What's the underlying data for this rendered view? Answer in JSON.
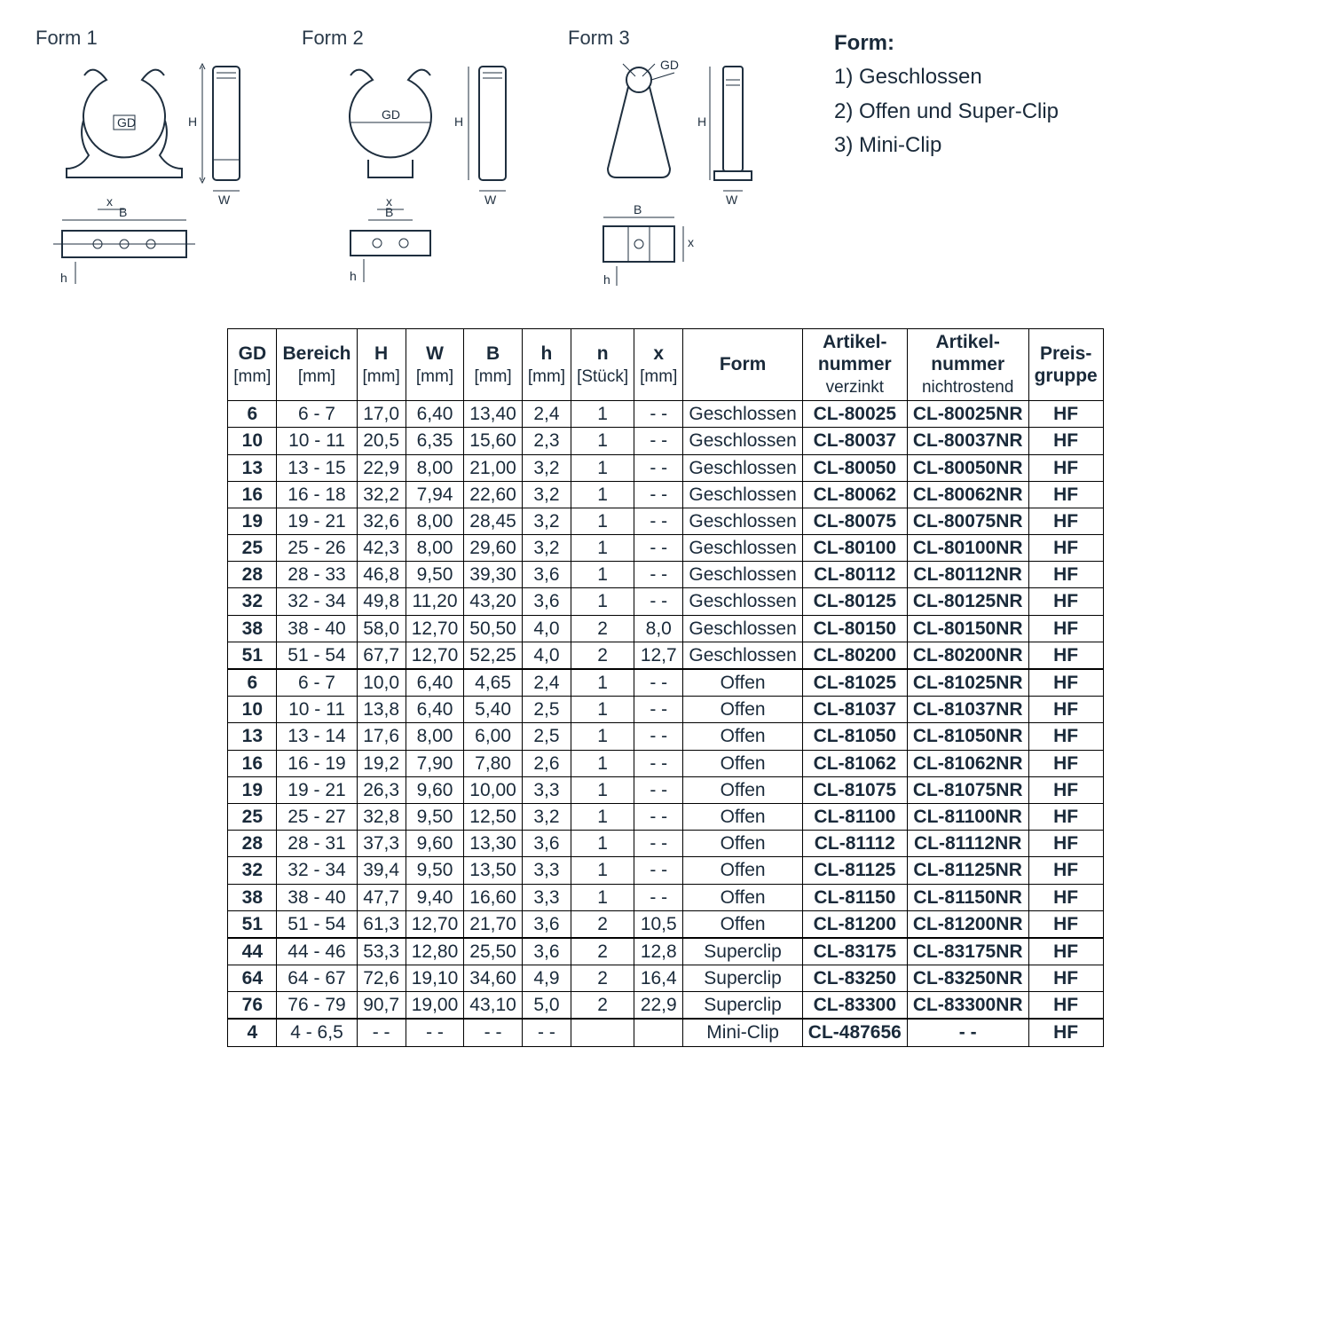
{
  "diagrams": {
    "form1_label": "Form 1",
    "form2_label": "Form 2",
    "form3_label": "Form 3",
    "gd_label": "GD",
    "h_label": "H",
    "w_label": "W",
    "b_label": "B",
    "x_label": "x",
    "h_small_label": "h"
  },
  "legend": {
    "title": "Form:",
    "items": [
      "1) Geschlossen",
      "2) Offen und Super-Clip",
      "3) Mini-Clip"
    ]
  },
  "table": {
    "headers": {
      "gd": "GD",
      "gd_unit": "[mm]",
      "bereich": "Bereich",
      "bereich_unit": "[mm]",
      "H": "H",
      "H_unit": "[mm]",
      "W": "W",
      "W_unit": "[mm]",
      "B": "B",
      "B_unit": "[mm]",
      "h": "h",
      "h_unit": "[mm]",
      "n": "n",
      "n_unit": "[Stück]",
      "x": "x",
      "x_unit": "[mm]",
      "form": "Form",
      "art1a": "Artikel-",
      "art1b": "nummer",
      "art1c": "verzinkt",
      "art2a": "Artikel-",
      "art2b": "nummer",
      "art2c": "nichtrostend",
      "preis_a": "Preis-",
      "preis_b": "gruppe"
    },
    "groups": [
      {
        "rows": [
          {
            "gd": "6",
            "bereich": "6  -  7",
            "H": "17,0",
            "W": "6,40",
            "B": "13,40",
            "h": "2,4",
            "n": "1",
            "x": "- -",
            "form": "Geschlossen",
            "art1": "CL-80025",
            "art2": "CL-80025NR",
            "pg": "HF"
          },
          {
            "gd": "10",
            "bereich": "10 - 11",
            "H": "20,5",
            "W": "6,35",
            "B": "15,60",
            "h": "2,3",
            "n": "1",
            "x": "- -",
            "form": "Geschlossen",
            "art1": "CL-80037",
            "art2": "CL-80037NR",
            "pg": "HF"
          },
          {
            "gd": "13",
            "bereich": "13 - 15",
            "H": "22,9",
            "W": "8,00",
            "B": "21,00",
            "h": "3,2",
            "n": "1",
            "x": "- -",
            "form": "Geschlossen",
            "art1": "CL-80050",
            "art2": "CL-80050NR",
            "pg": "HF"
          },
          {
            "gd": "16",
            "bereich": "16 - 18",
            "H": "32,2",
            "W": "7,94",
            "B": "22,60",
            "h": "3,2",
            "n": "1",
            "x": "- -",
            "form": "Geschlossen",
            "art1": "CL-80062",
            "art2": "CL-80062NR",
            "pg": "HF"
          },
          {
            "gd": "19",
            "bereich": "19 - 21",
            "H": "32,6",
            "W": "8,00",
            "B": "28,45",
            "h": "3,2",
            "n": "1",
            "x": "- -",
            "form": "Geschlossen",
            "art1": "CL-80075",
            "art2": "CL-80075NR",
            "pg": "HF"
          },
          {
            "gd": "25",
            "bereich": "25 - 26",
            "H": "42,3",
            "W": "8,00",
            "B": "29,60",
            "h": "3,2",
            "n": "1",
            "x": "- -",
            "form": "Geschlossen",
            "art1": "CL-80100",
            "art2": "CL-80100NR",
            "pg": "HF"
          },
          {
            "gd": "28",
            "bereich": "28 - 33",
            "H": "46,8",
            "W": "9,50",
            "B": "39,30",
            "h": "3,6",
            "n": "1",
            "x": "- -",
            "form": "Geschlossen",
            "art1": "CL-80112",
            "art2": "CL-80112NR",
            "pg": "HF"
          },
          {
            "gd": "32",
            "bereich": "32 - 34",
            "H": "49,8",
            "W": "11,20",
            "B": "43,20",
            "h": "3,6",
            "n": "1",
            "x": "- -",
            "form": "Geschlossen",
            "art1": "CL-80125",
            "art2": "CL-80125NR",
            "pg": "HF"
          },
          {
            "gd": "38",
            "bereich": "38 - 40",
            "H": "58,0",
            "W": "12,70",
            "B": "50,50",
            "h": "4,0",
            "n": "2",
            "x": "8,0",
            "form": "Geschlossen",
            "art1": "CL-80150",
            "art2": "CL-80150NR",
            "pg": "HF"
          },
          {
            "gd": "51",
            "bereich": "51 - 54",
            "H": "67,7",
            "W": "12,70",
            "B": "52,25",
            "h": "4,0",
            "n": "2",
            "x": "12,7",
            "form": "Geschlossen",
            "art1": "CL-80200",
            "art2": "CL-80200NR",
            "pg": "HF"
          }
        ]
      },
      {
        "rows": [
          {
            "gd": "6",
            "bereich": "6  -  7",
            "H": "10,0",
            "W": "6,40",
            "B": "4,65",
            "h": "2,4",
            "n": "1",
            "x": "- -",
            "form": "Offen",
            "art1": "CL-81025",
            "art2": "CL-81025NR",
            "pg": "HF"
          },
          {
            "gd": "10",
            "bereich": "10 - 11",
            "H": "13,8",
            "W": "6,40",
            "B": "5,40",
            "h": "2,5",
            "n": "1",
            "x": "- -",
            "form": "Offen",
            "art1": "CL-81037",
            "art2": "CL-81037NR",
            "pg": "HF"
          },
          {
            "gd": "13",
            "bereich": "13 - 14",
            "H": "17,6",
            "W": "8,00",
            "B": "6,00",
            "h": "2,5",
            "n": "1",
            "x": "- -",
            "form": "Offen",
            "art1": "CL-81050",
            "art2": "CL-81050NR",
            "pg": "HF"
          },
          {
            "gd": "16",
            "bereich": "16 - 19",
            "H": "19,2",
            "W": "7,90",
            "B": "7,80",
            "h": "2,6",
            "n": "1",
            "x": "- -",
            "form": "Offen",
            "art1": "CL-81062",
            "art2": "CL-81062NR",
            "pg": "HF"
          },
          {
            "gd": "19",
            "bereich": "19 - 21",
            "H": "26,3",
            "W": "9,60",
            "B": "10,00",
            "h": "3,3",
            "n": "1",
            "x": "- -",
            "form": "Offen",
            "art1": "CL-81075",
            "art2": "CL-81075NR",
            "pg": "HF"
          },
          {
            "gd": "25",
            "bereich": "25 - 27",
            "H": "32,8",
            "W": "9,50",
            "B": "12,50",
            "h": "3,2",
            "n": "1",
            "x": "- -",
            "form": "Offen",
            "art1": "CL-81100",
            "art2": "CL-81100NR",
            "pg": "HF"
          },
          {
            "gd": "28",
            "bereich": "28 - 31",
            "H": "37,3",
            "W": "9,60",
            "B": "13,30",
            "h": "3,6",
            "n": "1",
            "x": "- -",
            "form": "Offen",
            "art1": "CL-81112",
            "art2": "CL-81112NR",
            "pg": "HF"
          },
          {
            "gd": "32",
            "bereich": "32 - 34",
            "H": "39,4",
            "W": "9,50",
            "B": "13,50",
            "h": "3,3",
            "n": "1",
            "x": "- -",
            "form": "Offen",
            "art1": "CL-81125",
            "art2": "CL-81125NR",
            "pg": "HF"
          },
          {
            "gd": "38",
            "bereich": "38 - 40",
            "H": "47,7",
            "W": "9,40",
            "B": "16,60",
            "h": "3,3",
            "n": "1",
            "x": "- -",
            "form": "Offen",
            "art1": "CL-81150",
            "art2": "CL-81150NR",
            "pg": "HF"
          },
          {
            "gd": "51",
            "bereich": "51 - 54",
            "H": "61,3",
            "W": "12,70",
            "B": "21,70",
            "h": "3,6",
            "n": "2",
            "x": "10,5",
            "form": "Offen",
            "art1": "CL-81200",
            "art2": "CL-81200NR",
            "pg": "HF"
          }
        ]
      },
      {
        "rows": [
          {
            "gd": "44",
            "bereich": "44 - 46",
            "H": "53,3",
            "W": "12,80",
            "B": "25,50",
            "h": "3,6",
            "n": "2",
            "x": "12,8",
            "form": "Superclip",
            "art1": "CL-83175",
            "art2": "CL-83175NR",
            "pg": "HF"
          },
          {
            "gd": "64",
            "bereich": "64 - 67",
            "H": "72,6",
            "W": "19,10",
            "B": "34,60",
            "h": "4,9",
            "n": "2",
            "x": "16,4",
            "form": "Superclip",
            "art1": "CL-83250",
            "art2": "CL-83250NR",
            "pg": "HF"
          },
          {
            "gd": "76",
            "bereich": "76 - 79",
            "H": "90,7",
            "W": "19,00",
            "B": "43,10",
            "h": "5,0",
            "n": "2",
            "x": "22,9",
            "form": "Superclip",
            "art1": "CL-83300",
            "art2": "CL-83300NR",
            "pg": "HF"
          }
        ]
      },
      {
        "rows": [
          {
            "gd": "4",
            "bereich": "4  - 6,5",
            "H": "- -",
            "W": "- -",
            "B": "- -",
            "h": "- -",
            "n": "",
            "x": "",
            "form": "Mini-Clip",
            "art1": "CL-487656",
            "art2": "- -",
            "pg": "HF"
          }
        ]
      }
    ]
  }
}
